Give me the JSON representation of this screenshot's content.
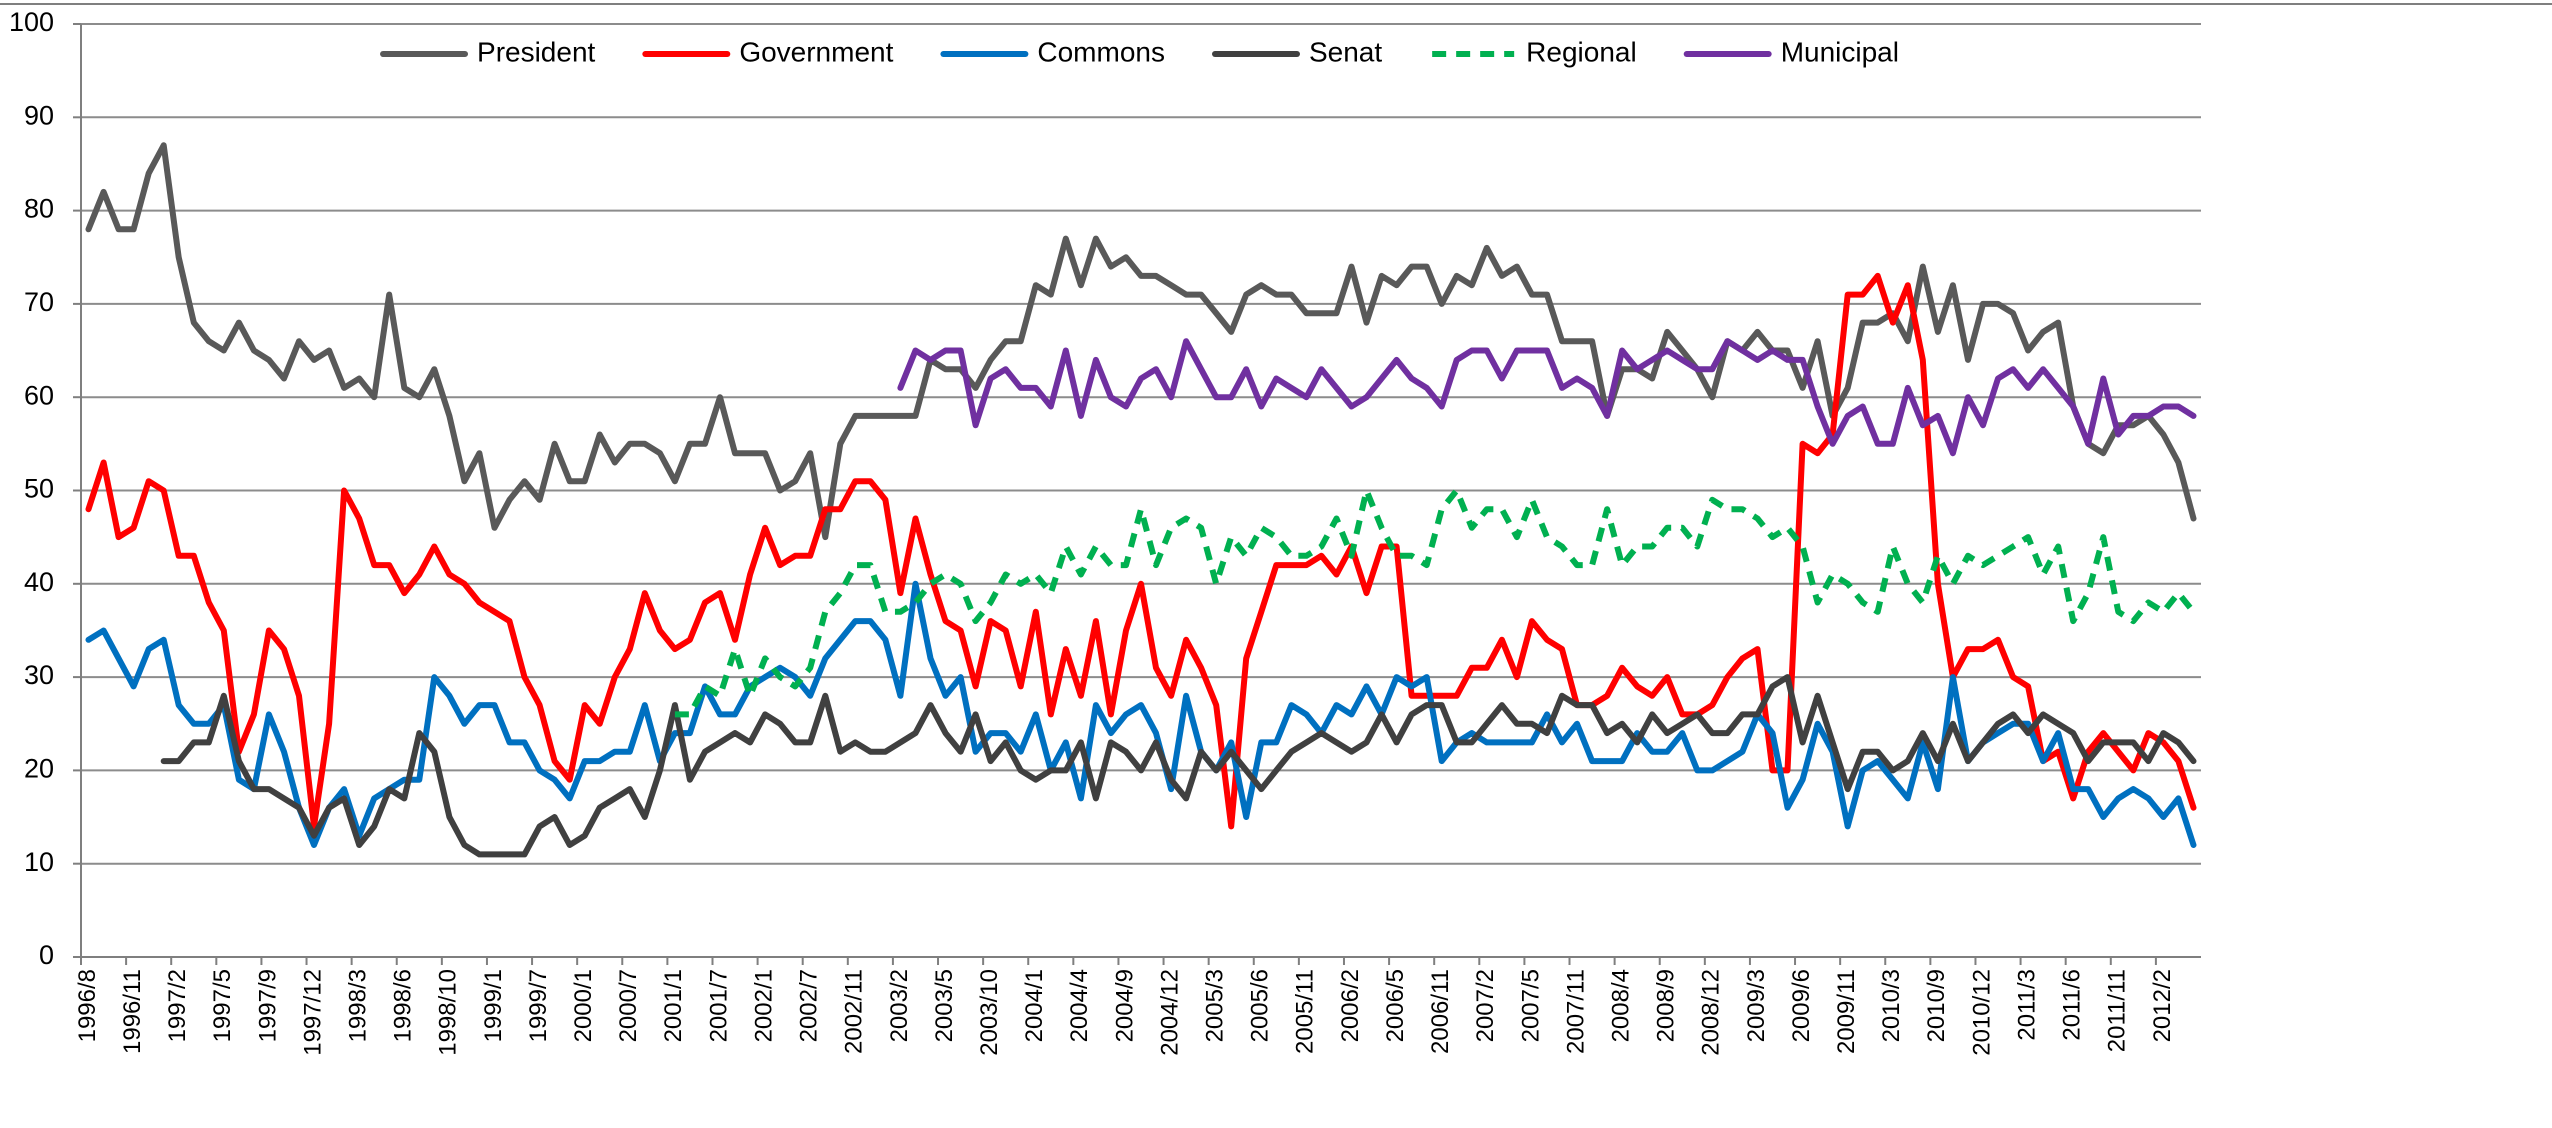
{
  "chart_data": {
    "type": "line",
    "categories": [
      "1996/8",
      null,
      null,
      "1996/11",
      null,
      null,
      "1997/2",
      null,
      null,
      "1997/5",
      null,
      null,
      "1997/9",
      null,
      null,
      "1997/12",
      null,
      null,
      "1998/3",
      null,
      null,
      "1998/6",
      null,
      null,
      "1998/10",
      null,
      null,
      "1999/1",
      null,
      null,
      "1999/7",
      null,
      null,
      "2000/1",
      null,
      null,
      "2000/7",
      null,
      null,
      "2001/1",
      null,
      null,
      "2001/7",
      null,
      null,
      "2002/1",
      null,
      null,
      "2002/7",
      null,
      null,
      "2002/11",
      null,
      null,
      "2003/2",
      null,
      null,
      "2003/5",
      null,
      null,
      "2003/10",
      null,
      null,
      "2004/1",
      null,
      null,
      "2004/4",
      null,
      null,
      "2004/9",
      null,
      null,
      "2004/12",
      null,
      null,
      "2005/3",
      null,
      null,
      "2005/6",
      null,
      null,
      "2005/11",
      null,
      null,
      "2006/2",
      null,
      null,
      "2006/5",
      null,
      null,
      "2006/11",
      null,
      null,
      "2007/2",
      null,
      null,
      "2007/5",
      null,
      null,
      "2007/11",
      null,
      null,
      "2008/4",
      null,
      null,
      "2008/9",
      null,
      null,
      "2008/12",
      null,
      null,
      "2009/3",
      null,
      null,
      "2009/6",
      null,
      null,
      "2009/11",
      null,
      null,
      "2010/3",
      null,
      null,
      "2010/9",
      null,
      null,
      "2010/12",
      null,
      null,
      "2011/3",
      null,
      null,
      "2011/6",
      null,
      null,
      "2011/11",
      null,
      null,
      "2012/2",
      null,
      null
    ],
    "series": [
      {
        "name": "President",
        "color": "#595959",
        "style": "solid",
        "values": [
          78,
          82,
          78,
          78,
          84,
          87,
          75,
          68,
          66,
          65,
          68,
          65,
          64,
          62,
          66,
          64,
          65,
          61,
          62,
          60,
          71,
          61,
          60,
          63,
          58,
          51,
          54,
          46,
          49,
          51,
          49,
          55,
          51,
          51,
          56,
          53,
          55,
          55,
          54,
          51,
          55,
          55,
          60,
          54,
          54,
          54,
          50,
          51,
          54,
          45,
          55,
          58,
          58,
          58,
          58,
          58,
          64,
          63,
          63,
          61,
          64,
          66,
          66,
          72,
          71,
          77,
          72,
          77,
          74,
          75,
          73,
          73,
          72,
          71,
          71,
          69,
          67,
          71,
          72,
          71,
          71,
          69,
          69,
          69,
          74,
          68,
          73,
          72,
          74,
          74,
          70,
          73,
          72,
          76,
          73,
          74,
          71,
          71,
          66,
          66,
          66,
          58,
          63,
          63,
          62,
          67,
          65,
          63,
          60,
          66,
          65,
          67,
          65,
          65,
          61,
          66,
          58,
          61,
          68,
          68,
          69,
          66,
          74,
          67,
          72,
          64,
          70,
          70,
          69,
          65,
          67,
          68,
          59,
          55,
          54,
          57,
          57,
          58,
          56,
          53,
          47
        ]
      },
      {
        "name": "Government",
        "color": "#ff0000",
        "style": "solid",
        "values": [
          48,
          53,
          45,
          46,
          51,
          50,
          43,
          43,
          38,
          35,
          22,
          26,
          35,
          33,
          28,
          14,
          25,
          50,
          47,
          42,
          42,
          39,
          41,
          44,
          41,
          40,
          38,
          37,
          36,
          30,
          27,
          21,
          19,
          27,
          25,
          30,
          33,
          39,
          35,
          33,
          34,
          38,
          39,
          34,
          41,
          46,
          42,
          43,
          43,
          48,
          48,
          51,
          51,
          49,
          39,
          47,
          41,
          36,
          35,
          29,
          36,
          35,
          29,
          37,
          26,
          33,
          28,
          36,
          26,
          35,
          40,
          31,
          28,
          34,
          31,
          27,
          14,
          32,
          37,
          42,
          42,
          42,
          43,
          41,
          44,
          39,
          44,
          44,
          28,
          28,
          28,
          28,
          31,
          31,
          34,
          30,
          36,
          34,
          33,
          27,
          27,
          28,
          31,
          29,
          28,
          30,
          26,
          26,
          27,
          30,
          32,
          33,
          20,
          20,
          55,
          54,
          56,
          71,
          71,
          73,
          68,
          72,
          64,
          40,
          30,
          33,
          33,
          34,
          30,
          29,
          21,
          22,
          17,
          22,
          24,
          22,
          20,
          24,
          23,
          21,
          16
        ]
      },
      {
        "name": "Commons",
        "color": "#0070c0",
        "style": "solid",
        "values": [
          34,
          35,
          32,
          29,
          33,
          34,
          27,
          25,
          25,
          27,
          19,
          18,
          26,
          22,
          16,
          12,
          16,
          18,
          13,
          17,
          18,
          19,
          19,
          30,
          28,
          25,
          27,
          27,
          23,
          23,
          20,
          19,
          17,
          21,
          21,
          22,
          22,
          27,
          21,
          24,
          24,
          29,
          26,
          26,
          29,
          30,
          31,
          30,
          28,
          32,
          34,
          36,
          36,
          34,
          28,
          40,
          32,
          28,
          30,
          22,
          24,
          24,
          22,
          26,
          20,
          23,
          17,
          27,
          24,
          26,
          27,
          24,
          18,
          28,
          22,
          20,
          23,
          15,
          23,
          23,
          27,
          26,
          24,
          27,
          26,
          29,
          26,
          30,
          29,
          30,
          21,
          23,
          24,
          23,
          23,
          23,
          23,
          26,
          23,
          25,
          21,
          21,
          21,
          24,
          22,
          22,
          24,
          20,
          20,
          21,
          22,
          26,
          24,
          16,
          19,
          25,
          22,
          14,
          20,
          21,
          19,
          17,
          23,
          18,
          30,
          21,
          23,
          24,
          25,
          25,
          21,
          24,
          18,
          18,
          15,
          17,
          18,
          17,
          15,
          17,
          12
        ]
      },
      {
        "name": "Senat",
        "color": "#404040",
        "style": "solid",
        "values": [
          null,
          null,
          null,
          null,
          null,
          21,
          21,
          23,
          23,
          28,
          21,
          18,
          18,
          17,
          16,
          13,
          16,
          17,
          12,
          14,
          18,
          17,
          24,
          22,
          15,
          12,
          11,
          11,
          11,
          11,
          14,
          15,
          12,
          13,
          16,
          17,
          18,
          15,
          20,
          27,
          19,
          22,
          23,
          24,
          23,
          26,
          25,
          23,
          23,
          28,
          22,
          23,
          22,
          22,
          23,
          24,
          27,
          24,
          22,
          26,
          21,
          23,
          20,
          19,
          20,
          20,
          23,
          17,
          23,
          22,
          20,
          23,
          19,
          17,
          22,
          20,
          22,
          20,
          18,
          20,
          22,
          23,
          24,
          23,
          22,
          23,
          26,
          23,
          26,
          27,
          27,
          23,
          23,
          25,
          27,
          25,
          25,
          24,
          28,
          27,
          27,
          24,
          25,
          23,
          26,
          24,
          25,
          26,
          24,
          24,
          26,
          26,
          29,
          30,
          23,
          28,
          23,
          18,
          22,
          22,
          20,
          21,
          24,
          21,
          25,
          21,
          23,
          25,
          26,
          24,
          26,
          25,
          24,
          21,
          23,
          23,
          23,
          21,
          24,
          23,
          21
        ]
      },
      {
        "name": "Regional",
        "color": "#00b050",
        "style": "dashed",
        "values": [
          null,
          null,
          null,
          null,
          null,
          null,
          null,
          null,
          null,
          null,
          null,
          null,
          null,
          null,
          null,
          null,
          null,
          null,
          null,
          null,
          null,
          null,
          null,
          null,
          null,
          null,
          null,
          null,
          null,
          null,
          null,
          null,
          null,
          null,
          null,
          null,
          null,
          null,
          null,
          26,
          26,
          29,
          28,
          33,
          28,
          32,
          30,
          29,
          31,
          37,
          39,
          42,
          42,
          37,
          37,
          38,
          40,
          41,
          40,
          36,
          38,
          41,
          40,
          41,
          39,
          44,
          41,
          44,
          42,
          42,
          48,
          42,
          46,
          47,
          46,
          40,
          45,
          43,
          46,
          45,
          43,
          43,
          44,
          47,
          43,
          50,
          46,
          43,
          43,
          42,
          48,
          50,
          46,
          48,
          48,
          45,
          49,
          45,
          44,
          42,
          42,
          48,
          42,
          44,
          44,
          46,
          46,
          44,
          49,
          48,
          48,
          47,
          45,
          46,
          44,
          38,
          41,
          40,
          38,
          37,
          44,
          40,
          38,
          43,
          40,
          43,
          42,
          43,
          44,
          45,
          41,
          44,
          36,
          39,
          45,
          37,
          36,
          38,
          37,
          39,
          37
        ]
      },
      {
        "name": "Municipal",
        "color": "#7030a0",
        "style": "solid",
        "values": [
          null,
          null,
          null,
          null,
          null,
          null,
          null,
          null,
          null,
          null,
          null,
          null,
          null,
          null,
          null,
          null,
          null,
          null,
          null,
          null,
          null,
          null,
          null,
          null,
          null,
          null,
          null,
          null,
          null,
          null,
          null,
          null,
          null,
          null,
          null,
          null,
          null,
          null,
          null,
          null,
          null,
          null,
          null,
          null,
          null,
          null,
          null,
          null,
          null,
          null,
          null,
          null,
          null,
          null,
          61,
          65,
          64,
          65,
          65,
          57,
          62,
          63,
          61,
          61,
          59,
          65,
          58,
          64,
          60,
          59,
          62,
          63,
          60,
          66,
          63,
          60,
          60,
          63,
          59,
          62,
          61,
          60,
          63,
          61,
          59,
          60,
          62,
          64,
          62,
          61,
          59,
          64,
          65,
          65,
          62,
          65,
          65,
          65,
          61,
          62,
          61,
          58,
          65,
          63,
          64,
          65,
          64,
          63,
          63,
          66,
          65,
          64,
          65,
          64,
          64,
          59,
          55,
          58,
          59,
          55,
          55,
          61,
          57,
          58,
          54,
          60,
          57,
          62,
          63,
          61,
          63,
          61,
          59,
          55,
          62,
          56,
          58,
          58,
          59,
          59,
          58
        ]
      }
    ],
    "ylim": [
      0,
      100
    ],
    "yticks": [
      0,
      10,
      20,
      30,
      40,
      50,
      60,
      70,
      80,
      90,
      100
    ],
    "grid": true,
    "legend": "top"
  }
}
